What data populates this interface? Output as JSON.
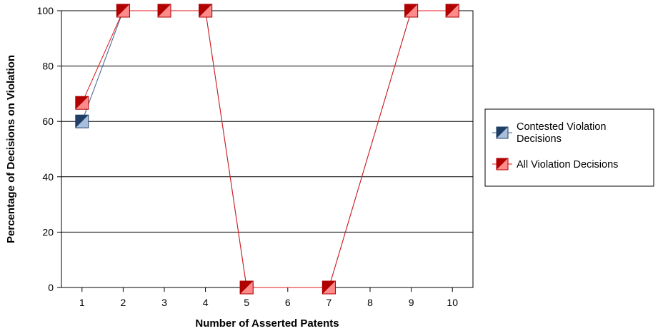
{
  "chart_data": {
    "type": "line",
    "title": "",
    "xlabel": "Number of Asserted Patents",
    "ylabel": "Percentage of Decisions on Violation",
    "x": [
      1,
      2,
      3,
      4,
      5,
      6,
      7,
      8,
      9,
      10
    ],
    "ylim": [
      0,
      100
    ],
    "yticks": [
      0,
      20,
      40,
      60,
      80,
      100
    ],
    "grid": true,
    "legend_position": "right",
    "series": [
      {
        "name_lines": [
          "Contested Violation",
          "Decisions"
        ],
        "color_dark": "#1f3f66",
        "color_light": "#a7bfdc",
        "line_color": "#3a5f8f",
        "points": [
          [
            1,
            60
          ],
          [
            2,
            100
          ],
          [
            3,
            100
          ],
          [
            4,
            100
          ],
          [
            5,
            0
          ],
          [
            7,
            0
          ],
          [
            9,
            100
          ],
          [
            10,
            100
          ]
        ]
      },
      {
        "name_lines": [
          "All Violation Decisions"
        ],
        "color_dark": "#b00000",
        "color_light": "#ff8a8a",
        "line_color": "#e01818",
        "points": [
          [
            1,
            66.7
          ],
          [
            2,
            100
          ],
          [
            3,
            100
          ],
          [
            4,
            100
          ],
          [
            5,
            0
          ],
          [
            7,
            0
          ],
          [
            9,
            100
          ],
          [
            10,
            100
          ]
        ]
      }
    ]
  }
}
